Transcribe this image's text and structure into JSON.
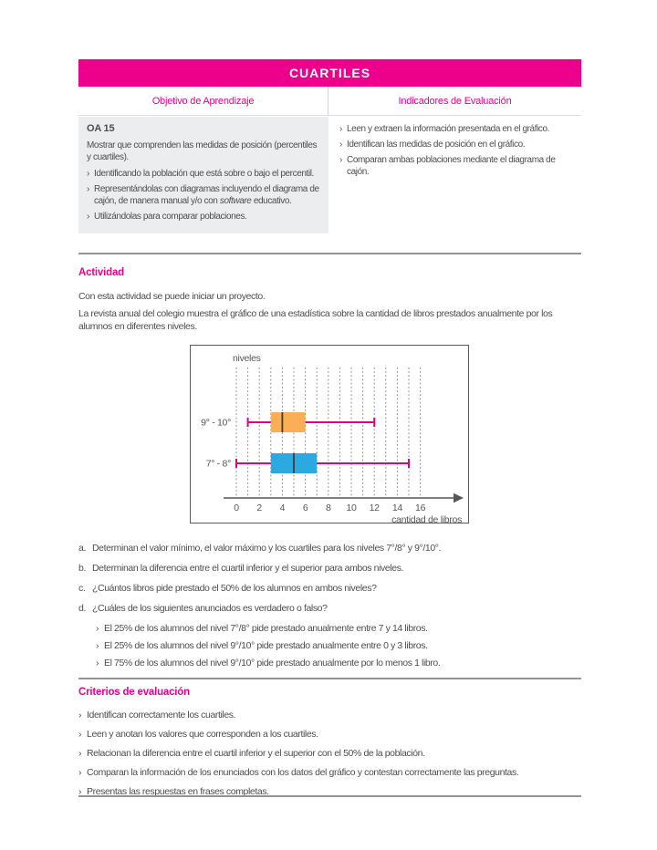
{
  "ui": {
    "bullet": "›"
  },
  "colors": {
    "magenta": "#EC008C",
    "cell_gray": "#ECEDEE",
    "text_gray": "#4e4e50",
    "divider_gray": "#939597"
  },
  "header": {
    "title": "CUARTILES",
    "col_objective": "Objetivo de Aprendizaje",
    "col_indicators": "Indicadores de Evaluación"
  },
  "objective": {
    "code": "OA 15",
    "intro": "Mostrar que comprenden las medidas de posición (percentiles y cuartiles).",
    "bullets": [
      {
        "pre": "Identificando la población que está sobre o bajo el percentil.",
        "italic": "",
        "post": ""
      },
      {
        "pre": "Representándolas con diagramas incluyendo el diagrama de cajón, de manera manual y/o con ",
        "italic": "software",
        "post": " educativo."
      },
      {
        "pre": "Utilizándolas para comparar poblaciones.",
        "italic": "",
        "post": ""
      }
    ]
  },
  "indicators": {
    "bullets": [
      "Leen y extraen la información presentada en el gráfico.",
      "Identifican las medidas de posición en el gráfico.",
      "Comparan ambas poblaciones mediante el diagrama de cajón."
    ]
  },
  "activity": {
    "heading": "Actividad",
    "p1": "Con esta actividad se puede iniciar un proyecto.",
    "p2": "La revista anual del colegio muestra el gráfico de una estadística sobre la cantidad de libros prestados anualmente por los alumnos en diferentes niveles."
  },
  "chart_data": {
    "type": "boxplot",
    "orientation": "horizontal",
    "ylabel": "niveles",
    "xlabel": "cantidad de libros",
    "xlim": [
      0,
      16
    ],
    "xticks": [
      0,
      2,
      4,
      6,
      8,
      10,
      12,
      14,
      16
    ],
    "gridline_step": 1,
    "grid": true,
    "series": [
      {
        "category": "9° - 10°",
        "min": 1,
        "q1": 3,
        "median": 4,
        "q3": 6,
        "max": 12,
        "box_color": "#FBAE54"
      },
      {
        "category": "7° - 8°",
        "min": 0,
        "q1": 3,
        "median": 5,
        "q3": 7,
        "max": 15,
        "box_color": "#2CA9E1"
      }
    ],
    "whisker_color": "#E5007D",
    "median_color": "#3B3B3D"
  },
  "questions": [
    {
      "label": "a.",
      "text": "Determinan el valor mínimo, el valor máximo y los cuartiles para los niveles 7°/8° y 9°/10°."
    },
    {
      "label": "b.",
      "text": "Determinan la diferencia entre el cuartil inferior y el superior para ambos niveles."
    },
    {
      "label": "c.",
      "text": "¿Cuántos libros pide prestado el 50% de los alumnos en ambos niveles?"
    },
    {
      "label": "d.",
      "text": "¿Cuáles de los siguientes anunciados es verdadero o falso?"
    }
  ],
  "question_d_sub": [
    "El 25% de los alumnos del nivel 7°/8° pide prestado anualmente entre 7 y 14 libros.",
    "El 25% de los alumnos del nivel 9°/10° pide prestado anualmente entre 0 y 3 libros.",
    "El 75% de los alumnos del nivel 9°/10° pide prestado anualmente por lo menos 1 libro."
  ],
  "criteria": {
    "heading": "Criterios de evaluación",
    "bullets": [
      "Identifican correctamente los cuartiles.",
      "Leen y anotan los valores que corresponden a los cuartiles.",
      "Relacionan la diferencia entre el cuartil inferior y el superior con el 50% de la población.",
      "Comparan la información de los enunciados con los datos del gráfico y contestan correctamente las preguntas.",
      "Presentas las respuestas en frases completas."
    ]
  }
}
